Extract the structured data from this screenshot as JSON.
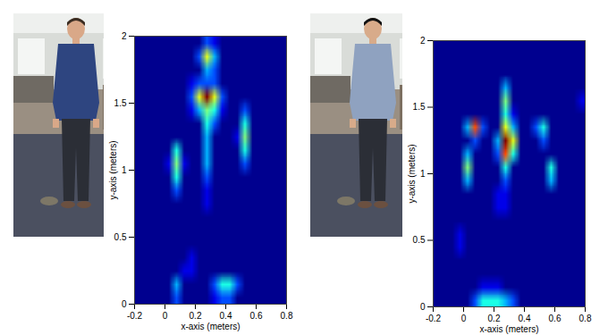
{
  "chart_data": [
    {
      "type": "heatmap",
      "xlabel": "x-axis (meters)",
      "ylabel": "y-axis (meters)",
      "xlim": [
        -0.2,
        0.8
      ],
      "ylim": [
        0,
        2
      ],
      "xticks": [
        -0.2,
        0,
        0.2,
        0.4,
        0.6,
        0.8
      ],
      "yticks": [
        0,
        0.5,
        1,
        1.5,
        2
      ],
      "color_range": [
        0,
        10
      ],
      "cells": [
        [
          0,
          0,
          0,
          0,
          0,
          0,
          0,
          0,
          0,
          2,
          1,
          0,
          0,
          0,
          0,
          0,
          0,
          0,
          0,
          0
        ],
        [
          0,
          0,
          0,
          0,
          0,
          0,
          0,
          0,
          2,
          6,
          3,
          0,
          0,
          0,
          0,
          0,
          0,
          0,
          0,
          0
        ],
        [
          0,
          0,
          0,
          0,
          0,
          0,
          0,
          0,
          0,
          3,
          2,
          0,
          0,
          0,
          0,
          0,
          0,
          0,
          0,
          0
        ],
        [
          0,
          0,
          0,
          0,
          0,
          0,
          0,
          1,
          2,
          2,
          2,
          0,
          0,
          0,
          0,
          0,
          0,
          0,
          0,
          0
        ],
        [
          0,
          0,
          0,
          0,
          0,
          0,
          0,
          2,
          6,
          10,
          6,
          2,
          0,
          0,
          0,
          0,
          0,
          0,
          0,
          0
        ],
        [
          0,
          0,
          0,
          0,
          0,
          0,
          0,
          1,
          3,
          5,
          4,
          1,
          0,
          0,
          2,
          0,
          0,
          0,
          0,
          0
        ],
        [
          0,
          0,
          0,
          0,
          0,
          0,
          0,
          0,
          0,
          4,
          2,
          0,
          0,
          0,
          4,
          0,
          0,
          0,
          0,
          0
        ],
        [
          0,
          0,
          0,
          0,
          0,
          0,
          0,
          0,
          0,
          3,
          0,
          0,
          0,
          1,
          5,
          0,
          0,
          0,
          0,
          0
        ],
        [
          0,
          0,
          0,
          0,
          0,
          4,
          0,
          0,
          0,
          3,
          0,
          0,
          0,
          0,
          4,
          0,
          0,
          0,
          0,
          0
        ],
        [
          0,
          0,
          0,
          0,
          1,
          5,
          1,
          0,
          0,
          3,
          0,
          0,
          0,
          0,
          2,
          0,
          0,
          0,
          0,
          0
        ],
        [
          0,
          0,
          0,
          0,
          0,
          4,
          0,
          0,
          0,
          2,
          0,
          0,
          0,
          0,
          0,
          0,
          0,
          0,
          0,
          0
        ],
        [
          0,
          0,
          0,
          0,
          0,
          2,
          0,
          0,
          0,
          1,
          0,
          0,
          0,
          0,
          0,
          0,
          0,
          0,
          0,
          0
        ],
        [
          0,
          0,
          0,
          0,
          0,
          0,
          0,
          0,
          0,
          1,
          0,
          0,
          0,
          0,
          0,
          0,
          0,
          0,
          0,
          0
        ],
        [
          0,
          0,
          0,
          0,
          0,
          0,
          0,
          0,
          0,
          0,
          0,
          0,
          0,
          0,
          0,
          0,
          0,
          0,
          0,
          0
        ],
        [
          0,
          0,
          0,
          0,
          0,
          0,
          0,
          0,
          0,
          0,
          0,
          0,
          0,
          0,
          0,
          0,
          0,
          0,
          0,
          0
        ],
        [
          0,
          0,
          0,
          0,
          0,
          0,
          0,
          0,
          0,
          0,
          0,
          0,
          0,
          0,
          0,
          0,
          0,
          0,
          0,
          0
        ],
        [
          0,
          0,
          0,
          0,
          0,
          0,
          0,
          1,
          0,
          0,
          0,
          0,
          0,
          0,
          0,
          0,
          0,
          0,
          0,
          0
        ],
        [
          0,
          0,
          0,
          0,
          0,
          0,
          1,
          1,
          0,
          0,
          0,
          0,
          0,
          0,
          0,
          0,
          0,
          0,
          0,
          0
        ],
        [
          0,
          0,
          0,
          0,
          0,
          3,
          0,
          0,
          0,
          0,
          2,
          4,
          4,
          2,
          0,
          0,
          0,
          0,
          0,
          0
        ],
        [
          0,
          0,
          0,
          0,
          0,
          2,
          0,
          0,
          0,
          0,
          1,
          2,
          2,
          0,
          0,
          0,
          0,
          0,
          0,
          0
        ]
      ]
    },
    {
      "type": "heatmap",
      "xlabel": "x-axis (meters)",
      "ylabel": "y-axis (meters)",
      "xlim": [
        -0.2,
        0.8
      ],
      "ylim": [
        0,
        2
      ],
      "xticks": [
        -0.2,
        0,
        0.2,
        0.4,
        0.6,
        0.8
      ],
      "yticks": [
        0,
        0.5,
        1,
        1.5,
        2
      ],
      "color_range": [
        0,
        10
      ],
      "cells": [
        [
          0,
          0,
          0,
          0,
          0,
          0,
          0,
          0,
          0,
          0,
          0,
          0,
          0,
          0,
          0,
          0,
          0,
          0,
          0,
          0
        ],
        [
          0,
          0,
          0,
          0,
          0,
          0,
          0,
          0,
          0,
          0,
          0,
          0,
          0,
          0,
          0,
          0,
          0,
          0,
          0,
          0
        ],
        [
          0,
          0,
          0,
          0,
          0,
          0,
          0,
          0,
          0,
          0,
          0,
          0,
          0,
          0,
          0,
          0,
          0,
          0,
          0,
          0
        ],
        [
          0,
          0,
          0,
          0,
          0,
          0,
          0,
          0,
          0,
          3,
          0,
          0,
          0,
          0,
          0,
          0,
          0,
          0,
          0,
          0
        ],
        [
          0,
          0,
          0,
          0,
          0,
          0,
          0,
          0,
          0,
          5,
          0,
          0,
          0,
          0,
          0,
          0,
          0,
          0,
          0,
          1
        ],
        [
          0,
          0,
          0,
          0,
          0,
          0,
          0,
          0,
          0,
          4,
          1,
          0,
          0,
          0,
          0,
          0,
          0,
          0,
          0,
          0
        ],
        [
          0,
          0,
          0,
          0,
          3,
          8,
          2,
          0,
          0,
          6,
          3,
          0,
          0,
          2,
          4,
          0,
          0,
          0,
          0,
          0
        ],
        [
          0,
          0,
          0,
          0,
          0,
          2,
          0,
          0,
          3,
          10,
          6,
          0,
          0,
          0,
          2,
          0,
          0,
          0,
          0,
          0
        ],
        [
          0,
          0,
          0,
          0,
          3,
          0,
          0,
          0,
          2,
          8,
          4,
          0,
          0,
          0,
          0,
          0,
          0,
          0,
          0,
          0
        ],
        [
          0,
          0,
          0,
          0,
          5,
          0,
          0,
          0,
          0,
          4,
          0,
          0,
          0,
          0,
          0,
          4,
          0,
          0,
          0,
          0
        ],
        [
          0,
          0,
          0,
          0,
          3,
          0,
          0,
          0,
          0,
          2,
          0,
          0,
          0,
          0,
          0,
          3,
          0,
          0,
          0,
          0
        ],
        [
          0,
          0,
          0,
          0,
          0,
          0,
          0,
          0,
          1,
          1,
          0,
          0,
          0,
          0,
          0,
          0,
          0,
          0,
          0,
          0
        ],
        [
          0,
          0,
          0,
          0,
          0,
          0,
          0,
          0,
          1,
          1,
          0,
          0,
          0,
          0,
          0,
          0,
          0,
          0,
          0,
          0
        ],
        [
          0,
          0,
          0,
          0,
          0,
          0,
          0,
          0,
          0,
          0,
          0,
          0,
          0,
          0,
          0,
          0,
          0,
          0,
          0,
          0
        ],
        [
          0,
          0,
          0,
          1,
          0,
          0,
          0,
          0,
          0,
          0,
          0,
          0,
          0,
          0,
          0,
          0,
          0,
          0,
          0,
          0
        ],
        [
          0,
          0,
          0,
          1,
          0,
          0,
          0,
          0,
          0,
          0,
          0,
          0,
          0,
          0,
          0,
          0,
          0,
          0,
          0,
          0
        ],
        [
          0,
          0,
          0,
          0,
          0,
          0,
          0,
          0,
          0,
          0,
          0,
          0,
          0,
          0,
          0,
          0,
          0,
          0,
          0,
          0
        ],
        [
          0,
          0,
          0,
          0,
          0,
          0,
          0,
          0,
          0,
          0,
          0,
          0,
          0,
          0,
          0,
          0,
          0,
          0,
          0,
          0
        ],
        [
          0,
          0,
          0,
          0,
          0,
          0,
          1,
          1,
          1,
          0,
          0,
          0,
          0,
          0,
          0,
          0,
          0,
          0,
          0,
          0
        ],
        [
          0,
          0,
          0,
          0,
          0,
          2,
          4,
          4,
          4,
          3,
          2,
          0,
          0,
          0,
          0,
          0,
          0,
          0,
          0,
          0
        ]
      ]
    }
  ]
}
